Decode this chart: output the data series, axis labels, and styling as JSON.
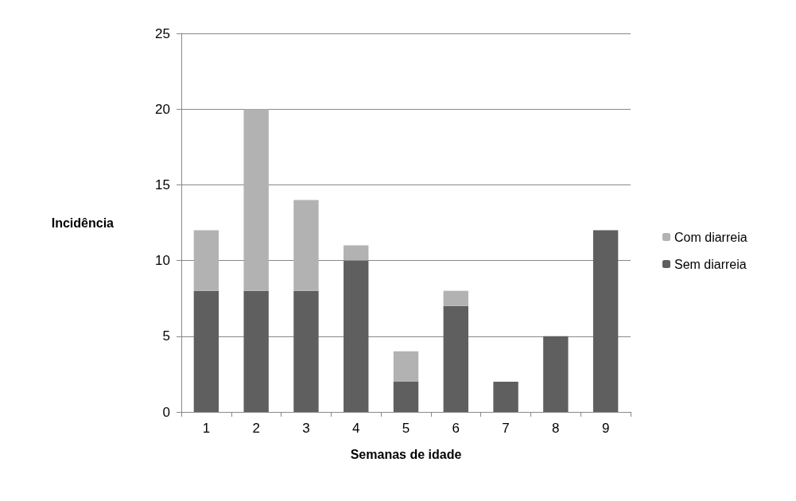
{
  "chart_data": {
    "type": "bar",
    "stacked": true,
    "xlabel": "Semanas de idade",
    "ylabel": "Incidência",
    "categories": [
      "1",
      "2",
      "3",
      "4",
      "5",
      "6",
      "7",
      "8",
      "9"
    ],
    "series": [
      {
        "name": "Sem diarreia",
        "color": "#5f5f5f",
        "values": [
          8,
          8,
          8,
          10,
          2,
          7,
          2,
          5,
          12
        ]
      },
      {
        "name": "Com diarreia",
        "color": "#b2b2b2",
        "values": [
          4,
          12,
          6,
          1,
          2,
          1,
          0,
          0,
          0
        ]
      }
    ],
    "ylim": [
      0,
      25
    ],
    "yticks": [
      0,
      5,
      10,
      15,
      20,
      25
    ],
    "grid": "y",
    "legend": "right"
  }
}
